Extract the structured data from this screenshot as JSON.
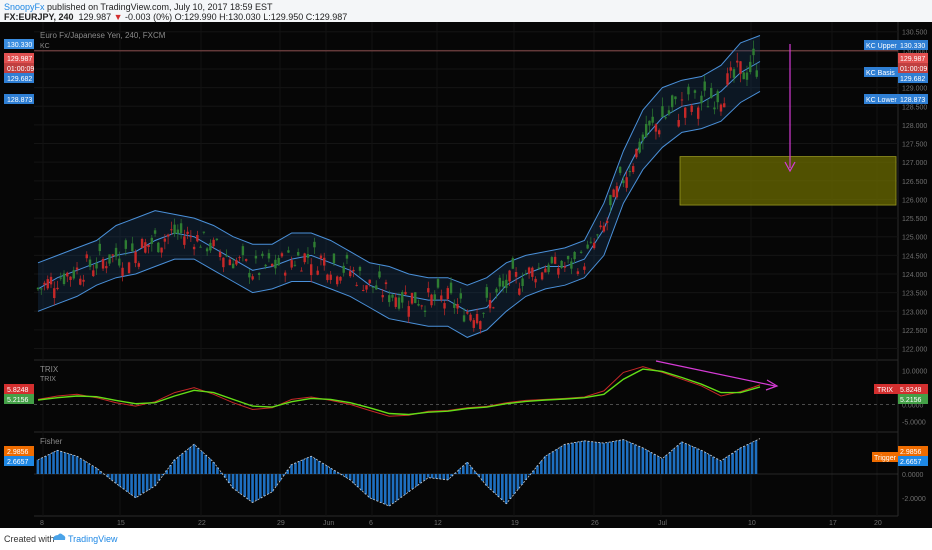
{
  "header": {
    "author": "SnoopyFx",
    "published_text": "published on TradingView.com, July 10, 2017 18:59 EST",
    "symbol": "FX:EURJPY, 240",
    "last": "129.987",
    "change": "-0.003 (0%)",
    "ohlc": {
      "o": "O:129.990",
      "h": "H:130.030",
      "l": "L:129.950",
      "c": "C:129.987"
    }
  },
  "main_pane": {
    "title": "Euro Fx/Japanese Yen, 240, FXCM",
    "indicator": "KC",
    "left_tags": [
      "130.330",
      "129.987",
      "01:00:09",
      "129.682",
      "128.873"
    ],
    "right_tags": [
      {
        "label": "KC Upper",
        "value": "130.330"
      },
      {
        "label": "",
        "value": "129.987"
      },
      {
        "label": "",
        "value": "01:00:09"
      },
      {
        "label": "KC Basis",
        "value": "129.682"
      },
      {
        "label": "KC Lower",
        "value": "128.873"
      }
    ]
  },
  "trix_pane": {
    "title": "TRIX",
    "subtitle": "TRIX",
    "value_red": "5.8248",
    "value_green": "5.2156",
    "right_label": "TRIX"
  },
  "fisher_pane": {
    "title": "Fisher",
    "value_orange": "2.9856",
    "value_blue": "2.6657",
    "right_label": "Trigger"
  },
  "footer": {
    "created_with": "Created with",
    "brand": "TradingView"
  },
  "colors": {
    "background": "#060606",
    "channel": "#4a90d9",
    "candle_up": "#2e7d32",
    "candle_down": "#c62828",
    "trix": "#c62828",
    "signal": "#64dd17",
    "fisher": "#1e6fc0",
    "annotation": "#d63bd6",
    "zone": "#6b6b00"
  },
  "chart_data": [
    {
      "type": "line",
      "title": "Euro Fx/Japanese Yen, 240, FXCM",
      "series": [
        {
          "name": "KC",
          "note": "Keltner Channel with candlesticks"
        }
      ],
      "y_ticks": [
        "130.500",
        "130.000",
        "129.500",
        "129.000",
        "128.500",
        "128.000",
        "127.500",
        "127.000",
        "126.500",
        "126.000",
        "125.500",
        "125.000",
        "124.500",
        "124.000",
        "123.500",
        "123.000",
        "122.500",
        "122.000"
      ],
      "ylim": [
        121.8,
        130.6
      ],
      "x_ticks": [
        "8",
        "15",
        "22",
        "29",
        "Jun",
        "6",
        "12",
        "19",
        "26",
        "Jul",
        "10",
        "17",
        "20"
      ],
      "kc_basis": [
        123.6,
        123.9,
        124.1,
        124.3,
        124.5,
        124.6,
        124.9,
        125.1,
        125.0,
        124.7,
        124.4,
        124.1,
        124.2,
        124.4,
        124.5,
        124.3,
        124.1,
        123.7,
        123.5,
        123.4,
        123.3,
        123.3,
        123.0,
        123.1,
        123.7,
        124.0,
        124.2,
        124.2,
        124.4,
        125.2,
        126.6,
        127.6,
        128.2,
        128.5,
        128.6,
        128.9,
        129.4,
        129.7
      ],
      "kc_upper": [
        124.3,
        124.5,
        124.7,
        124.9,
        125.3,
        125.5,
        125.7,
        125.6,
        125.5,
        125.3,
        125.0,
        124.8,
        124.8,
        125.1,
        125.1,
        124.9,
        124.6,
        124.3,
        124.2,
        124.0,
        123.9,
        123.9,
        123.7,
        123.9,
        124.3,
        124.5,
        124.6,
        124.7,
        124.9,
        125.9,
        127.3,
        128.4,
        129.0,
        129.2,
        129.3,
        129.6,
        130.2,
        130.4
      ],
      "kc_lower": [
        123.0,
        123.2,
        123.4,
        123.7,
        123.9,
        124.0,
        124.2,
        124.4,
        124.4,
        124.1,
        123.8,
        123.5,
        123.6,
        123.8,
        123.8,
        123.6,
        123.4,
        123.1,
        122.8,
        122.7,
        122.6,
        122.6,
        122.3,
        122.5,
        123.0,
        123.4,
        123.6,
        123.7,
        123.9,
        124.5,
        125.9,
        126.8,
        127.4,
        127.8,
        127.9,
        128.1,
        128.6,
        128.9
      ],
      "resistance_line": 129.987,
      "target_zone": [
        125.85,
        127.15
      ]
    },
    {
      "type": "line",
      "title": "TRIX",
      "ylim": [
        -7,
        12
      ],
      "y_ticks": [
        "10.0000",
        "5.0000",
        "0.0000",
        "-5.0000"
      ],
      "series": [
        {
          "name": "TRIX",
          "values": [
            1.5,
            2.5,
            3.0,
            2.0,
            0.5,
            -0.5,
            0.8,
            3.5,
            5.0,
            3.0,
            0.5,
            -1.5,
            -1.0,
            1.5,
            2.2,
            1.2,
            0.0,
            -1.8,
            -3.5,
            -3.2,
            -2.0,
            -1.8,
            -1.0,
            -0.6,
            0.5,
            1.2,
            1.5,
            1.8,
            2.2,
            4.0,
            9.5,
            11.2,
            9.5,
            7.5,
            5.5,
            2.5,
            3.8,
            5.8
          ]
        },
        {
          "name": "Signal",
          "values": [
            1.3,
            2.0,
            2.5,
            2.3,
            1.2,
            0.2,
            0.5,
            2.5,
            4.2,
            3.5,
            1.5,
            -0.5,
            -0.8,
            0.8,
            1.8,
            1.5,
            0.5,
            -1.0,
            -2.7,
            -3.0,
            -2.3,
            -2.0,
            -1.2,
            -0.8,
            0.2,
            0.9,
            1.3,
            1.6,
            2.0,
            3.0,
            7.5,
            10.5,
            9.8,
            8.0,
            6.0,
            3.5,
            3.5,
            5.2
          ]
        }
      ]
    },
    {
      "type": "bar",
      "title": "Fisher",
      "ylim": [
        -3.2,
        3.2
      ],
      "y_ticks": [
        "2.0000",
        "0.0000",
        "-2.0000"
      ],
      "series": [
        {
          "name": "Fisher",
          "values": [
            1.2,
            2.0,
            1.5,
            0.5,
            -0.8,
            -2.0,
            -1.0,
            1.2,
            2.5,
            1.0,
            -1.2,
            -2.4,
            -1.5,
            0.8,
            1.5,
            0.5,
            -0.5,
            -2.0,
            -2.7,
            -1.5,
            -0.3,
            -0.5,
            1.0,
            -1.0,
            -2.5,
            -0.5,
            1.5,
            2.5,
            2.8,
            2.6,
            2.9,
            2.2,
            1.3,
            2.7,
            2.0,
            1.1,
            2.2,
            2.98
          ]
        }
      ]
    }
  ]
}
